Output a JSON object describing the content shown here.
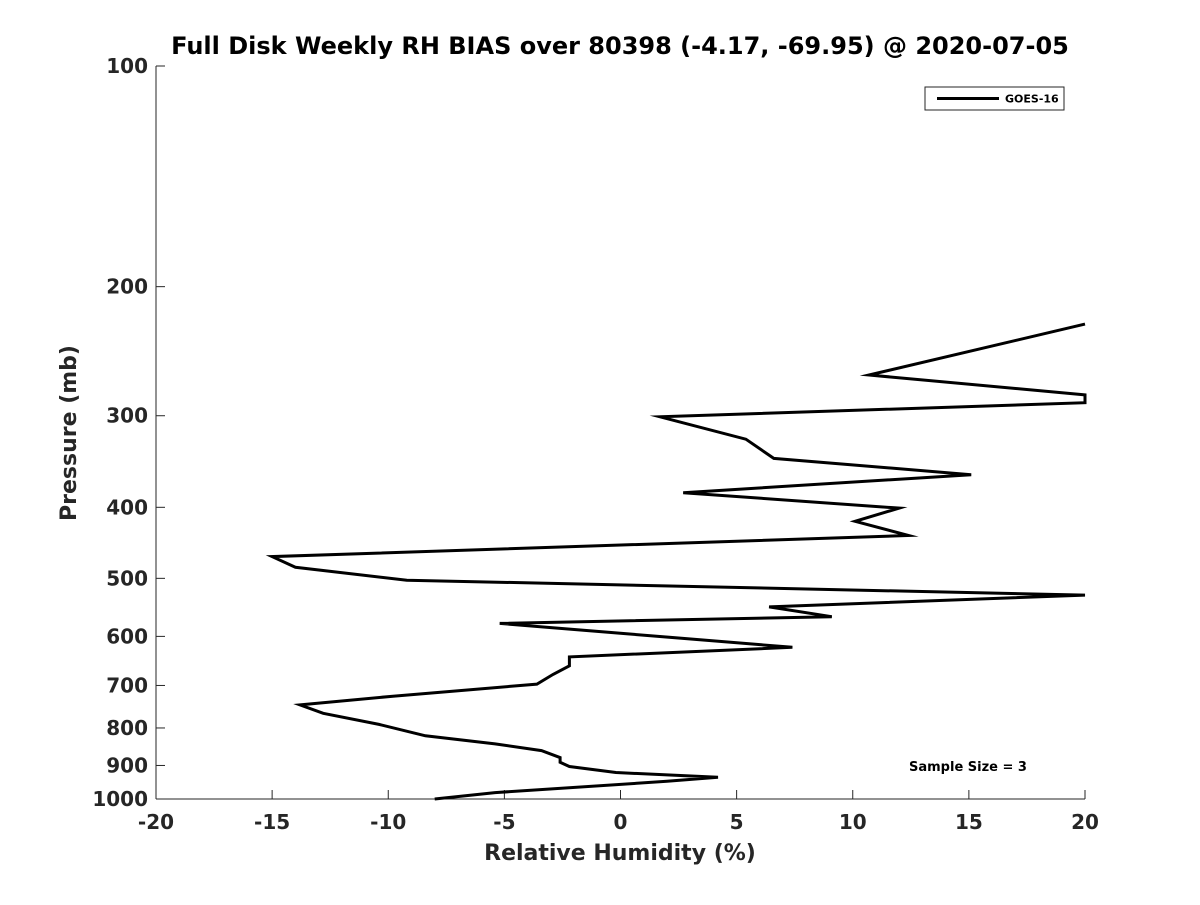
{
  "chart_data": {
    "type": "line",
    "title": "Full Disk Weekly RH BIAS over 80398 (-4.17, -69.95) @ 2020-07-05",
    "xlabel": "Relative Humidity (%)",
    "ylabel": "Pressure (mb)",
    "xlim": [
      -20,
      20
    ],
    "ylim": [
      100,
      1000
    ],
    "yscale": "log",
    "y_reversed": true,
    "x_ticks": [
      -20,
      -15,
      -10,
      -5,
      0,
      5,
      10,
      15,
      20
    ],
    "x_tick_labels": [
      "-20",
      "-15",
      "-10",
      "-5",
      "0",
      "5",
      "10",
      "15",
      "20"
    ],
    "y_ticks": [
      100,
      200,
      300,
      400,
      500,
      600,
      700,
      800,
      900,
      1000
    ],
    "y_tick_labels": [
      "100",
      "200",
      "300",
      "400",
      "500",
      "600",
      "700",
      "800",
      "900",
      "1000"
    ],
    "grid": false,
    "legend_position": "top-right",
    "series": [
      {
        "name": "GOES-16",
        "color": "#000000",
        "x": [
          20,
          10.7,
          20,
          20,
          1.7,
          5.4,
          6.6,
          15.1,
          2.7,
          12.0,
          10.1,
          12.4,
          -15.0,
          -14.0,
          -9.2,
          20,
          6.4,
          9.1,
          -5.2,
          7.4,
          -2.2,
          -2.2,
          -2.9,
          -3.6,
          -9.8,
          -13.8,
          -12.8,
          -10.4,
          -8.4,
          -5.4,
          -3.4,
          -2.6,
          -2.6,
          -2.2,
          -0.2,
          4.2,
          2.0,
          -5.4,
          -8.0
        ],
        "y": [
          225,
          264,
          281,
          288,
          301,
          323,
          343,
          361,
          382,
          401,
          418,
          437,
          467,
          483,
          503,
          527,
          547,
          564,
          576,
          621,
          640,
          658,
          676,
          697,
          724,
          744,
          764,
          791,
          820,
          841,
          859,
          878,
          891,
          903,
          920,
          934,
          946,
          980,
          1000
        ]
      }
    ],
    "annotations": [
      {
        "text": "Sample Size = 3",
        "position": "bottom-right"
      }
    ]
  }
}
